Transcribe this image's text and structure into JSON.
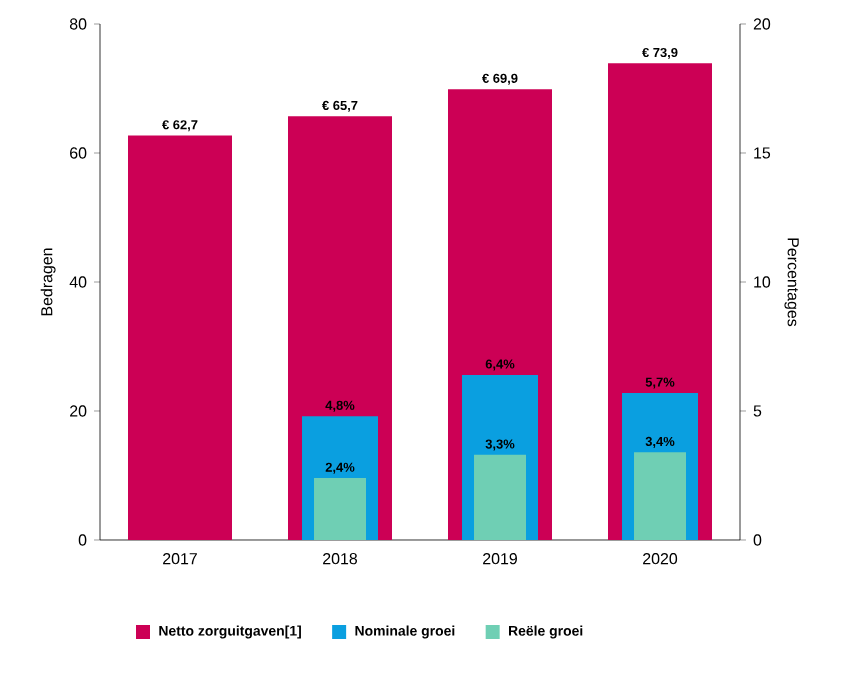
{
  "chart_data": {
    "type": "bar",
    "categories": [
      "2017",
      "2018",
      "2019",
      "2020"
    ],
    "ylabel": "Bedragen",
    "y2label": "Percentages",
    "ylim": [
      0,
      80
    ],
    "yticks": [
      0,
      20,
      40,
      60,
      80
    ],
    "y2lim": [
      0,
      20
    ],
    "y2ticks": [
      0,
      5,
      10,
      15,
      20
    ],
    "legend": "bottom",
    "series": [
      {
        "name": "Netto zorguitgaven[1]",
        "color": "#cc0055",
        "values": [
          62.7,
          65.7,
          69.9,
          73.9
        ],
        "value_labels": [
          "€ 62,7",
          "€ 65,7",
          "€ 69,9",
          "€ 73,9"
        ]
      },
      {
        "name": "Nominale groei",
        "color": "#0a9fe0",
        "axis": "y2",
        "values": [
          null,
          4.8,
          6.4,
          5.7
        ],
        "value_labels": [
          null,
          "4,8%",
          "6,4%",
          "5,7%"
        ]
      },
      {
        "name": "Reële groei",
        "color": "#6fcfb4",
        "axis": "y2",
        "values": [
          null,
          2.4,
          3.3,
          3.4
        ],
        "value_labels": [
          null,
          "2,4%",
          "3,3%",
          "3,4%"
        ]
      }
    ]
  }
}
